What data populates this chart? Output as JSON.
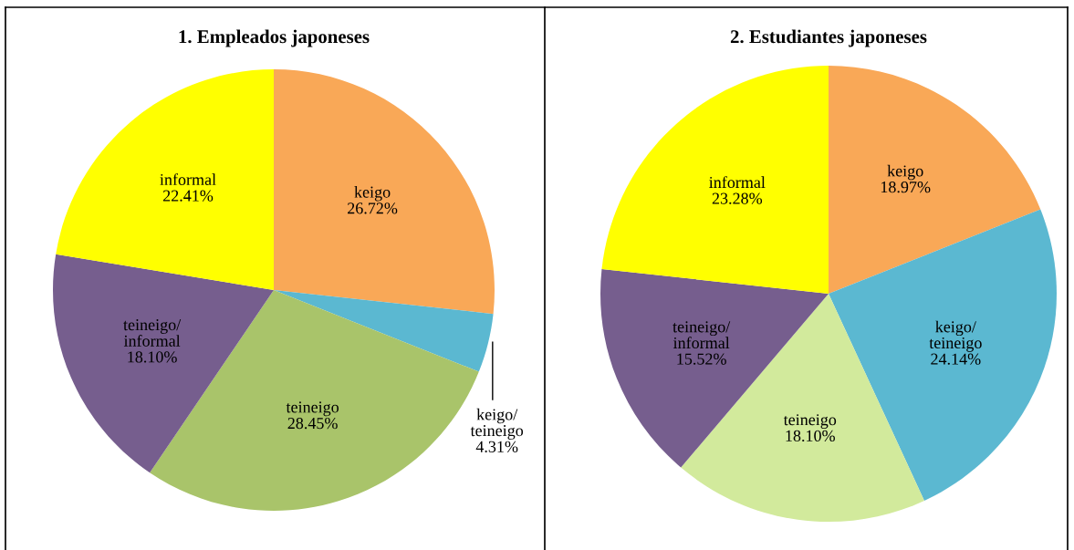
{
  "chart_data": [
    {
      "type": "pie",
      "title": "1. Empleados japoneses",
      "categories": [
        "keigo",
        "keigo/\nteineigo",
        "teineigo",
        "teineigo/\ninformal",
        "informal"
      ],
      "values": [
        26.72,
        4.31,
        28.45,
        18.1,
        22.41
      ],
      "value_labels": [
        "26.72%",
        "4.31%",
        "28.45%",
        "18.10%",
        "22.41%"
      ],
      "colors": [
        "#f9a857",
        "#5bb8d1",
        "#a9c46a",
        "#765e8e",
        "#ffff00"
      ],
      "legend": false
    },
    {
      "type": "pie",
      "title": "2. Estudiantes japoneses",
      "categories": [
        "keigo",
        "keigo/\nteineigo",
        "teineigo",
        "teineigo/\ninformal",
        "informal"
      ],
      "values": [
        18.97,
        24.14,
        18.1,
        15.52,
        23.28
      ],
      "value_labels": [
        "18.97%",
        "24.14%",
        "18.10%",
        "15.52%",
        "23.28%"
      ],
      "colors": [
        "#f9a857",
        "#5bb8d1",
        "#d2ea9c",
        "#765e8e",
        "#ffff00"
      ],
      "legend": false
    }
  ]
}
